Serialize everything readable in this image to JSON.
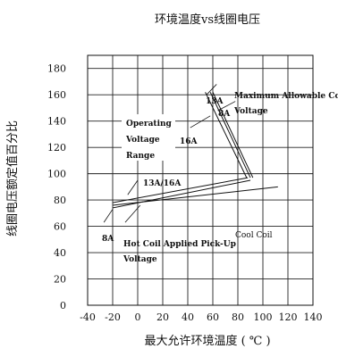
{
  "chart_data": {
    "type": "line",
    "title": "环境温度vs线圈电压",
    "xlabel": "最大允许环境温度 ( ℃ )",
    "ylabel": "线圈电压额定值百分比",
    "x_ticks": [
      -40,
      -20,
      0,
      20,
      40,
      60,
      80,
      100,
      120,
      140
    ],
    "y_ticks": [
      0,
      20,
      40,
      60,
      80,
      100,
      120,
      140,
      160,
      180
    ],
    "xlim": [
      -40,
      140
    ],
    "ylim": [
      0,
      190
    ],
    "grid": true,
    "series": [
      {
        "name": "13A",
        "points": [
          [
            54,
            162
          ],
          [
            87,
            97
          ]
        ]
      },
      {
        "name": "8A",
        "points": [
          [
            58,
            162
          ],
          [
            90,
            97
          ]
        ]
      },
      {
        "name": "16A",
        "points": [
          [
            60,
            162
          ],
          [
            92,
            97
          ]
        ]
      },
      {
        "name": "13A/16A",
        "points": [
          [
            -20,
            78
          ],
          [
            88,
            97
          ]
        ]
      },
      {
        "name": "8A",
        "points": [
          [
            -20,
            74
          ],
          [
            90,
            95
          ]
        ]
      },
      {
        "name": "Cool Coil",
        "points": [
          [
            -20,
            76
          ],
          [
            112,
            90
          ]
        ]
      }
    ],
    "annotations": {
      "operating_range": [
        "Operating",
        "Voltage",
        "Range"
      ],
      "max_coil": [
        "Maximum Allowable Coil",
        "Voltage"
      ],
      "hot_coil": [
        "Hot Coil Applied Pick-Up",
        "Voltage"
      ],
      "cool_coil": "Cool Coil",
      "label_13a": "13A",
      "label_8a_top": "8A",
      "label_16a": "16A",
      "label_13a_16a": "13A/16A",
      "label_8a_bottom": "8A"
    }
  }
}
